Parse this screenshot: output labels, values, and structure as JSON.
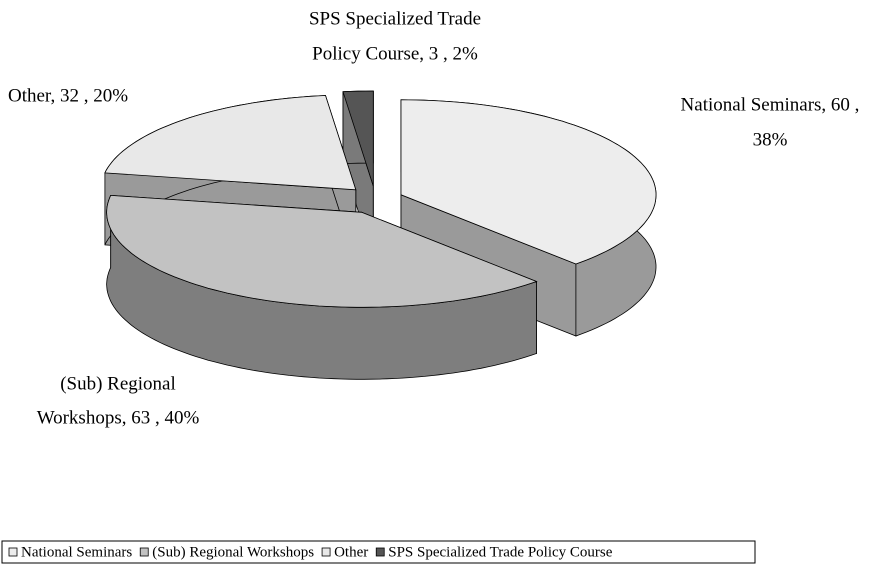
{
  "chart_data": {
    "type": "pie3d",
    "categories": [
      "National Seminars",
      "(Sub) Regional Workshops",
      "Other",
      "SPS Specialized Trade Policy Course"
    ],
    "values": [
      60,
      63,
      32,
      3
    ],
    "value_labels": [
      [
        "National Seminars,  60 ,",
        "38%"
      ],
      [
        "(Sub) Regional",
        "Workshops,  63 , 40%"
      ],
      [
        "Other,  32 , 20%"
      ],
      [
        "SPS Specialized Trade",
        "Policy Course,  3 , 2%"
      ]
    ],
    "colors": [
      "#ededed",
      "#c2c2c2",
      "#e8e8e8",
      "#555555"
    ],
    "side_colors": [
      "#9a9a9a",
      "#7e7e7e",
      "#9a9a9a",
      "#7a7a7a"
    ],
    "legend": "bottom"
  }
}
